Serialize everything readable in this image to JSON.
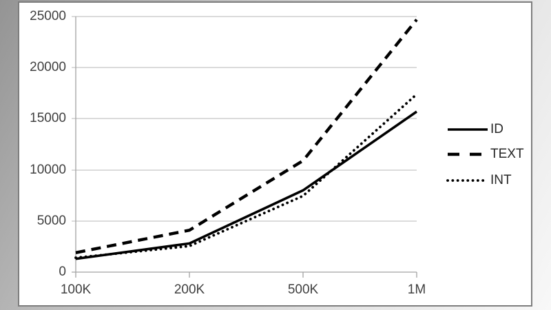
{
  "chart_data": {
    "type": "line",
    "title": "",
    "xlabel": "",
    "ylabel": "",
    "categories": [
      "100K",
      "200K",
      "500K",
      "1M"
    ],
    "series": [
      {
        "name": "ID",
        "line_style": "solid",
        "values": [
          1300,
          2800,
          8000,
          15700
        ]
      },
      {
        "name": "TEXT",
        "line_style": "dashed",
        "values": [
          1900,
          4100,
          10900,
          24700
        ]
      },
      {
        "name": "INT",
        "line_style": "dotted",
        "values": [
          1400,
          2550,
          7450,
          17400
        ]
      }
    ],
    "ylim": [
      0,
      25000
    ],
    "y_ticks": [
      0,
      5000,
      10000,
      15000,
      20000,
      25000
    ],
    "y_tick_labels": [
      "25000",
      "20000",
      "15000",
      "10000",
      "5000",
      "0"
    ],
    "grid": "horizontal",
    "legend_position": "right",
    "line_color": "#000000",
    "gridline_color": "#b7b7b7",
    "axis_color": "#a2a2a2",
    "label_color": "#3f3f3f"
  }
}
